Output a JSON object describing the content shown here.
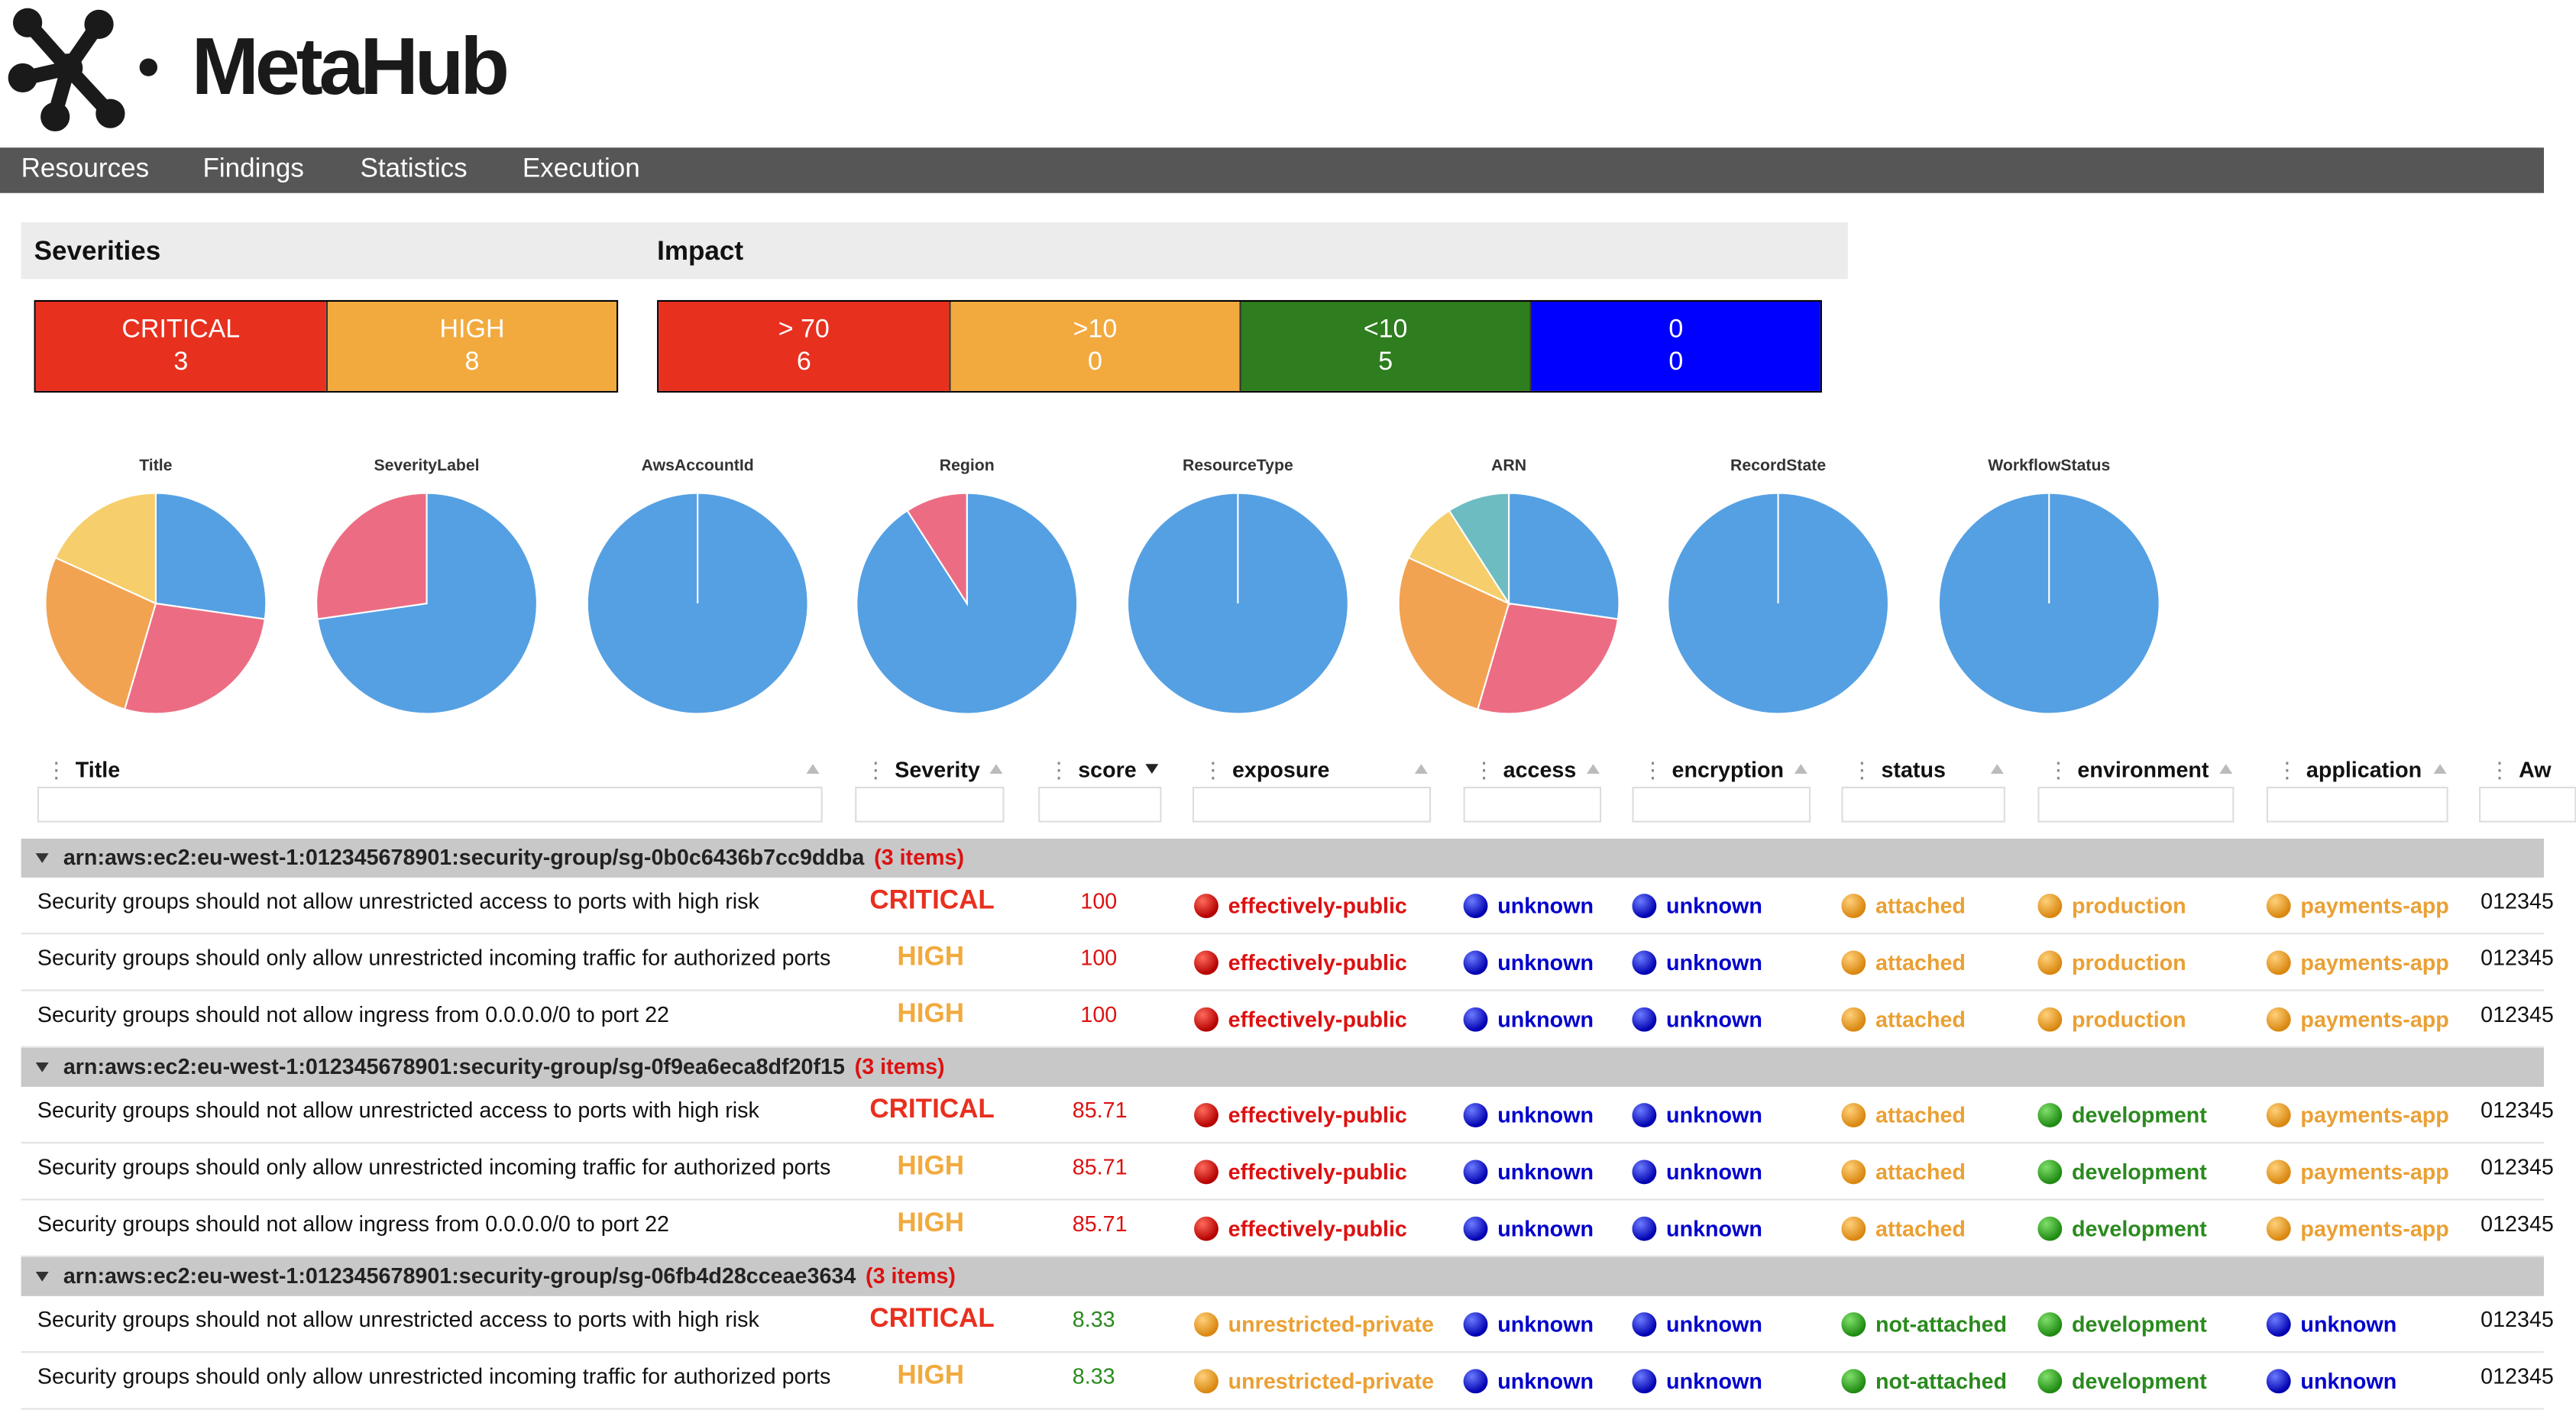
{
  "app": {
    "name": "MetaHub"
  },
  "colors": {
    "critical": "#e8301f",
    "high": "#f2aa3e",
    "green": "#2e7d1e",
    "blue": "#0000ff",
    "nav_bg": "#565656",
    "pie_blue": "#55a0e3",
    "pie_pink": "#ec6d83",
    "pie_orange": "#f2a352",
    "pie_yellow": "#f6cf6c",
    "pie_teal": "#6dbcc1"
  },
  "nav": {
    "items": [
      "Resources",
      "Findings",
      "Statistics",
      "Execution"
    ]
  },
  "severities": {
    "label": "Severities",
    "boxes": [
      {
        "label": "CRITICAL",
        "count": "3",
        "color": "#e8301f"
      },
      {
        "label": "HIGH",
        "count": "8",
        "color": "#f2aa3e"
      }
    ]
  },
  "impact": {
    "label": "Impact",
    "boxes": [
      {
        "label": "> 70",
        "count": "6",
        "color": "#e8301f"
      },
      {
        "label": ">10",
        "count": "0",
        "color": "#f2aa3e"
      },
      {
        "label": "<10",
        "count": "5",
        "color": "#2e7d1e"
      },
      {
        "label": "0",
        "count": "0",
        "color": "#0000ff"
      }
    ]
  },
  "chart_data": [
    {
      "type": "pie",
      "title": "Title",
      "slices": [
        {
          "value": 3,
          "color": "#55a0e3"
        },
        {
          "value": 3,
          "color": "#ec6d83"
        },
        {
          "value": 3,
          "color": "#f2a352"
        },
        {
          "value": 2,
          "color": "#f6cf6c"
        }
      ]
    },
    {
      "type": "pie",
      "title": "SeverityLabel",
      "slices": [
        {
          "value": 8,
          "color": "#55a0e3"
        },
        {
          "value": 3,
          "color": "#ec6d83"
        }
      ]
    },
    {
      "type": "pie",
      "title": "AwsAccountId",
      "slices": [
        {
          "value": 11,
          "color": "#55a0e3"
        }
      ]
    },
    {
      "type": "pie",
      "title": "Region",
      "slices": [
        {
          "value": 10,
          "color": "#55a0e3"
        },
        {
          "value": 1,
          "color": "#ec6d83"
        }
      ]
    },
    {
      "type": "pie",
      "title": "ResourceType",
      "slices": [
        {
          "value": 11,
          "color": "#55a0e3"
        }
      ]
    },
    {
      "type": "pie",
      "title": "ARN",
      "slices": [
        {
          "value": 3,
          "color": "#55a0e3"
        },
        {
          "value": 3,
          "color": "#ec6d83"
        },
        {
          "value": 3,
          "color": "#f2a352"
        },
        {
          "value": 1,
          "color": "#f6cf6c"
        },
        {
          "value": 1,
          "color": "#6dbcc1"
        }
      ]
    },
    {
      "type": "pie",
      "title": "RecordState",
      "slices": [
        {
          "value": 11,
          "color": "#55a0e3"
        }
      ]
    },
    {
      "type": "pie",
      "title": "WorkflowStatus",
      "slices": [
        {
          "value": 11,
          "color": "#55a0e3"
        }
      ]
    }
  ],
  "grid": {
    "columns": [
      "Title",
      "Severity",
      "score",
      "exposure",
      "access",
      "encryption",
      "status",
      "environment",
      "application",
      "Aw"
    ],
    "groups": [
      {
        "arn": "arn:aws:ec2:eu-west-1:012345678901:security-group/sg-0b0c6436b7cc9ddba",
        "count_label": "(3 items)",
        "rows": [
          {
            "title": "Security groups should not allow unrestricted access to ports with high risk",
            "severity": "CRITICAL",
            "score": "100",
            "score_color": "#d11",
            "exposure": "effectively-public",
            "exposure_color": "#d11",
            "access": "unknown",
            "encryption": "unknown",
            "status": "attached",
            "status_color": "#eaa034",
            "environment": "production",
            "environment_color": "#eaa034",
            "application": "payments-app",
            "application_color": "#eaa034",
            "aws": "012345"
          },
          {
            "title": "Security groups should only allow unrestricted incoming traffic for authorized ports",
            "severity": "HIGH",
            "score": "100",
            "score_color": "#d11",
            "exposure": "effectively-public",
            "exposure_color": "#d11",
            "access": "unknown",
            "encryption": "unknown",
            "status": "attached",
            "status_color": "#eaa034",
            "environment": "production",
            "environment_color": "#eaa034",
            "application": "payments-app",
            "application_color": "#eaa034",
            "aws": "012345"
          },
          {
            "title": "Security groups should not allow ingress from 0.0.0.0/0 to port 22",
            "severity": "HIGH",
            "score": "100",
            "score_color": "#d11",
            "exposure": "effectively-public",
            "exposure_color": "#d11",
            "access": "unknown",
            "encryption": "unknown",
            "status": "attached",
            "status_color": "#eaa034",
            "environment": "production",
            "environment_color": "#eaa034",
            "application": "payments-app",
            "application_color": "#eaa034",
            "aws": "012345"
          }
        ]
      },
      {
        "arn": "arn:aws:ec2:eu-west-1:012345678901:security-group/sg-0f9ea6eca8df20f15",
        "count_label": "(3 items)",
        "rows": [
          {
            "title": "Security groups should not allow unrestricted access to ports with high risk",
            "severity": "CRITICAL",
            "score": "85.71",
            "score_color": "#d11",
            "exposure": "effectively-public",
            "exposure_color": "#d11",
            "access": "unknown",
            "encryption": "unknown",
            "status": "attached",
            "status_color": "#eaa034",
            "environment": "development",
            "environment_color": "#2a8a1e",
            "application": "payments-app",
            "application_color": "#eaa034",
            "aws": "012345"
          },
          {
            "title": "Security groups should only allow unrestricted incoming traffic for authorized ports",
            "severity": "HIGH",
            "score": "85.71",
            "score_color": "#d11",
            "exposure": "effectively-public",
            "exposure_color": "#d11",
            "access": "unknown",
            "encryption": "unknown",
            "status": "attached",
            "status_color": "#eaa034",
            "environment": "development",
            "environment_color": "#2a8a1e",
            "application": "payments-app",
            "application_color": "#eaa034",
            "aws": "012345"
          },
          {
            "title": "Security groups should not allow ingress from 0.0.0.0/0 to port 22",
            "severity": "HIGH",
            "score": "85.71",
            "score_color": "#d11",
            "exposure": "effectively-public",
            "exposure_color": "#d11",
            "access": "unknown",
            "encryption": "unknown",
            "status": "attached",
            "status_color": "#eaa034",
            "environment": "development",
            "environment_color": "#2a8a1e",
            "application": "payments-app",
            "application_color": "#eaa034",
            "aws": "012345"
          }
        ]
      },
      {
        "arn": "arn:aws:ec2:eu-west-1:012345678901:security-group/sg-06fb4d28cceae3634",
        "count_label": "(3 items)",
        "rows": [
          {
            "title": "Security groups should not allow unrestricted access to ports with high risk",
            "severity": "CRITICAL",
            "score": "8.33",
            "score_color": "#2a8a1e",
            "exposure": "unrestricted-private",
            "exposure_color": "#eaa034",
            "access": "unknown",
            "encryption": "unknown",
            "status": "not-attached",
            "status_color": "#2a8a1e",
            "environment": "development",
            "environment_color": "#2a8a1e",
            "application": "unknown",
            "application_color": "#0000cc",
            "aws": "012345"
          },
          {
            "title": "Security groups should only allow unrestricted incoming traffic for authorized ports",
            "severity": "HIGH",
            "score": "8.33",
            "score_color": "#2a8a1e",
            "exposure": "unrestricted-private",
            "exposure_color": "#eaa034",
            "access": "unknown",
            "encryption": "unknown",
            "status": "not-attached",
            "status_color": "#2a8a1e",
            "environment": "development",
            "environment_color": "#2a8a1e",
            "application": "unknown",
            "application_color": "#0000cc",
            "aws": "012345"
          }
        ]
      }
    ]
  }
}
